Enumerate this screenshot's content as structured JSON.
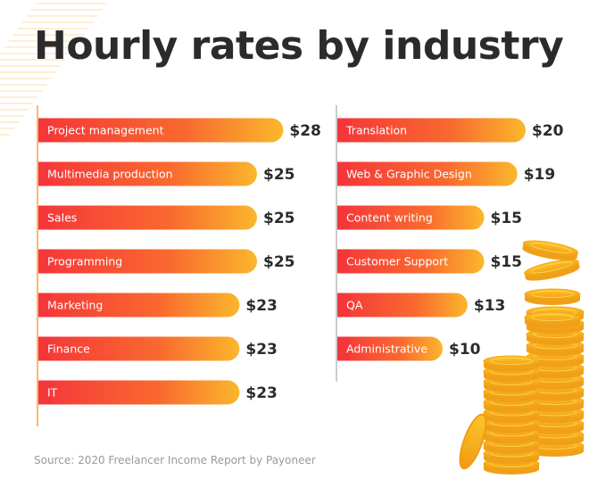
{
  "title": "Hourly rates by industry",
  "source": "Source: 2020 Freelancer Income Report by Payoneer",
  "colors": {
    "bar_start": "#f5363a",
    "bar_mid": "#f9692f",
    "bar_end": "#fbb72c",
    "axis": "#f7a23a",
    "text": "#2b2b2b",
    "deco_lines": "#fde3bf"
  },
  "chart_data": [
    {
      "type": "bar",
      "orientation": "horizontal",
      "categories": [
        "Project management",
        "Multimedia production",
        "Sales",
        "Programming",
        "Marketing",
        "Finance",
        "IT"
      ],
      "values": [
        28,
        25,
        25,
        25,
        23,
        23,
        23
      ],
      "value_labels": [
        "$28",
        "$25",
        "$25",
        "$25",
        "$23",
        "$23",
        "$23"
      ]
    },
    {
      "type": "bar",
      "orientation": "horizontal",
      "categories": [
        "Translation",
        "Web & Graphic Design",
        "Content writing",
        "Customer Support",
        "QA",
        "Administrative"
      ],
      "values": [
        20,
        19,
        15,
        15,
        13,
        10
      ],
      "value_labels": [
        "$20",
        "$19",
        "$15",
        "$15",
        "$13",
        "$10"
      ]
    }
  ],
  "illustration": "gold-coin-stacks"
}
